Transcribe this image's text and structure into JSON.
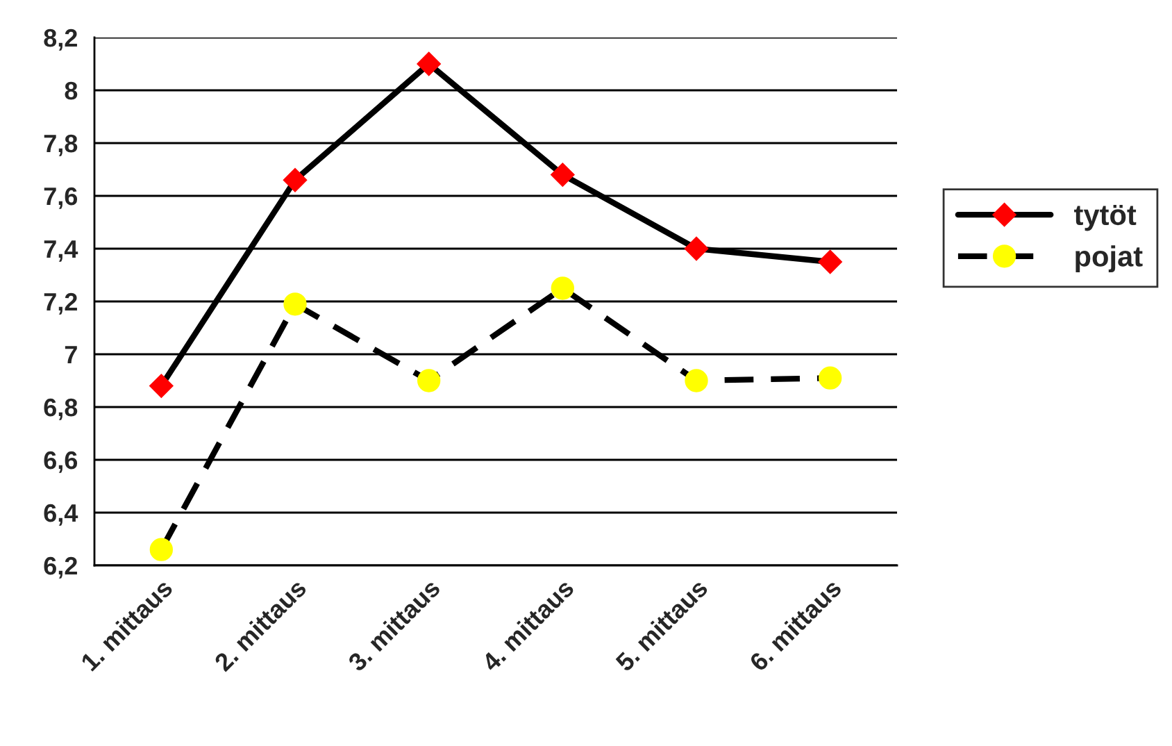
{
  "chart_data": {
    "type": "line",
    "categories": [
      "1. mittaus",
      "2. mittaus",
      "3. mittaus",
      "4. mittaus",
      "5. mittaus",
      "6. mittaus"
    ],
    "series": [
      {
        "name": "tytöt",
        "color": "#ff0000",
        "values": [
          6.88,
          7.66,
          8.1,
          7.68,
          7.4,
          7.35
        ],
        "marker": "diamond",
        "line_style": "solid"
      },
      {
        "name": "pojat",
        "color": "#ffff00",
        "values": [
          6.26,
          7.19,
          6.9,
          7.25,
          6.9,
          6.91
        ],
        "marker": "circle",
        "line_style": "dashed"
      }
    ],
    "ylim": [
      6.2,
      8.2
    ],
    "yticks": [
      {
        "value": 6.2,
        "label": "6,2"
      },
      {
        "value": 6.4,
        "label": "6,4"
      },
      {
        "value": 6.6,
        "label": "6,6"
      },
      {
        "value": 6.8,
        "label": "6,8"
      },
      {
        "value": 7,
        "label": "7"
      },
      {
        "value": 7.2,
        "label": "7,2"
      },
      {
        "value": 7.4,
        "label": "7,4"
      },
      {
        "value": 7.6,
        "label": "7,6"
      },
      {
        "value": 7.8,
        "label": "7,8"
      },
      {
        "value": 8,
        "label": "8"
      },
      {
        "value": 8.2,
        "label": "8,2"
      }
    ],
    "grid": "y",
    "legend": "right"
  }
}
